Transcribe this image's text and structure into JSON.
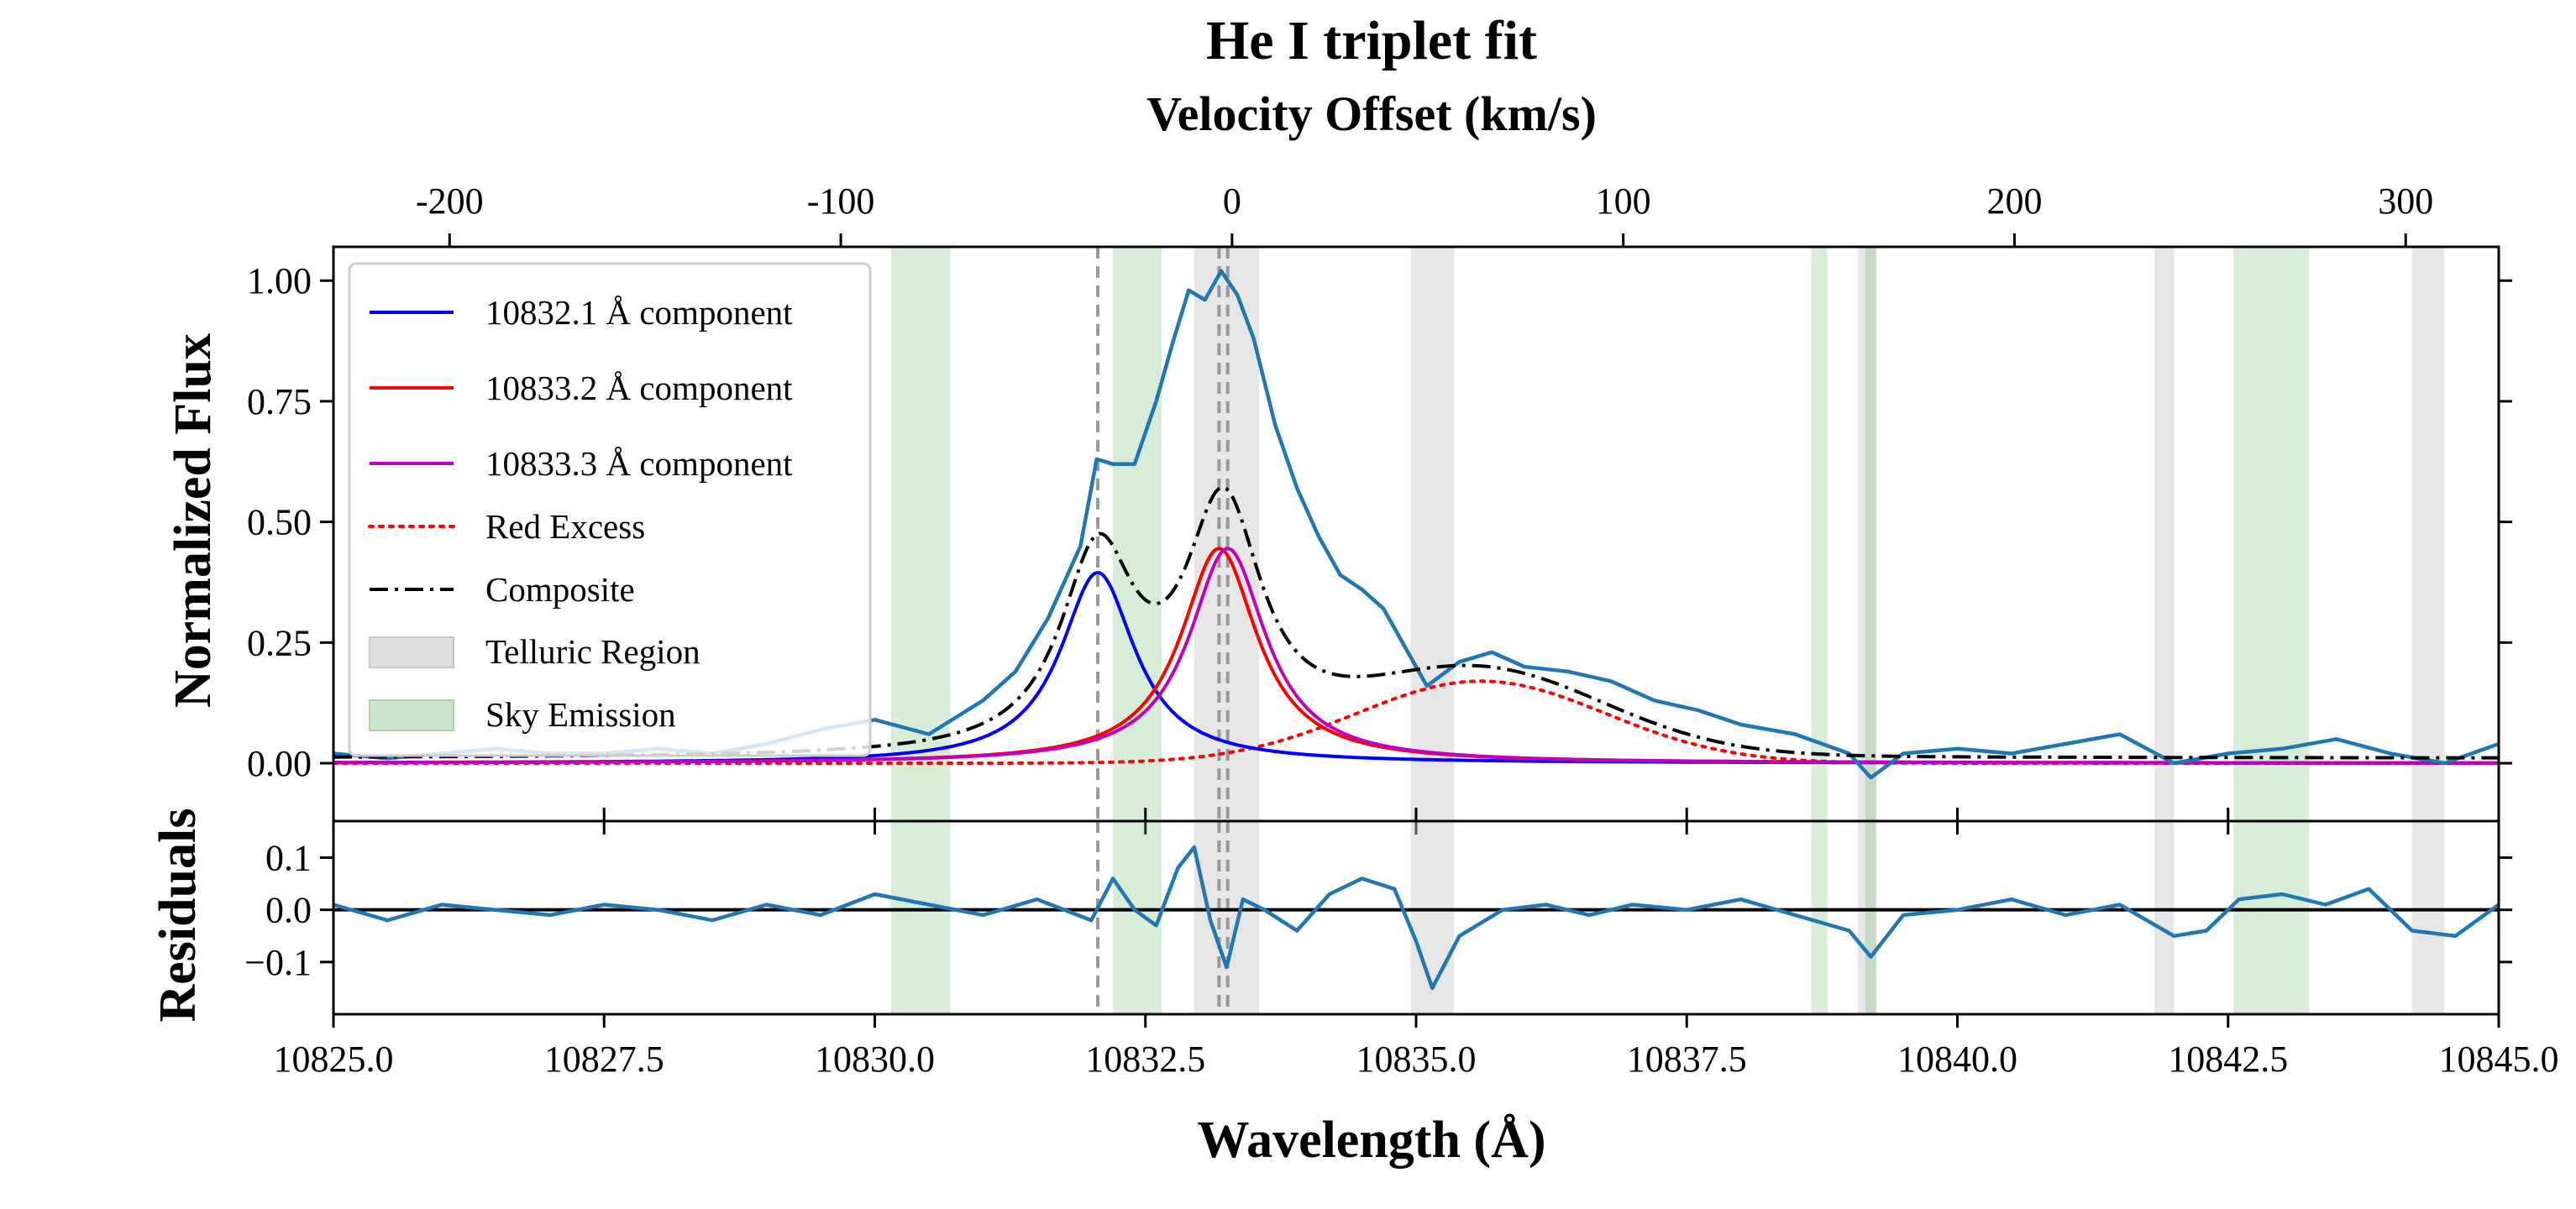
{
  "chart_data": {
    "type": "line",
    "title": "He I triplet fit",
    "top_axis_label": "Velocity Offset (km/s)",
    "top_ticks": [
      -200,
      -100,
      0,
      100,
      200,
      300
    ],
    "top_tick_labels": [
      "-200",
      "-100",
      "0",
      "100",
      "200",
      "300"
    ],
    "velocity_reference_A": 10833.3,
    "xlabel": "Wavelength (Å)",
    "xlim": [
      10825.0,
      10845.0
    ],
    "x_ticks": [
      10825.0,
      10827.5,
      10830.0,
      10832.5,
      10835.0,
      10837.5,
      10840.0,
      10842.5,
      10845.0
    ],
    "x_tick_labels": [
      "10825.0",
      "10827.5",
      "10830.0",
      "10832.5",
      "10835.0",
      "10837.5",
      "10840.0",
      "10842.5",
      "10845.0"
    ],
    "top_panel": {
      "ylabel": "Normalized Flux",
      "ylim": [
        -0.12,
        1.07
      ],
      "y_ticks": [
        0.0,
        0.25,
        0.5,
        0.75,
        1.0
      ],
      "y_tick_labels": [
        "0.00",
        "0.25",
        "0.50",
        "0.75",
        "1.00"
      ]
    },
    "bottom_panel": {
      "ylabel": "Residuals",
      "ylim": [
        -0.2,
        0.17
      ],
      "y_ticks": [
        -0.1,
        0.0,
        0.1
      ],
      "y_tick_labels": [
        "−0.1",
        "0.0",
        "0.1"
      ]
    },
    "legend": {
      "location": "upper-left",
      "entries": [
        {
          "label": "10832.1 Å component",
          "style": "solid",
          "color": "#0000ff"
        },
        {
          "label": "10833.2 Å component",
          "style": "solid",
          "color": "#ff0000"
        },
        {
          "label": "10833.3 Å component",
          "style": "solid",
          "color": "#bf00bf"
        },
        {
          "label": "Red Excess",
          "style": "dotted",
          "color": "#ff0000"
        },
        {
          "label": "Composite",
          "style": "dashdot",
          "color": "#000000"
        },
        {
          "label": "Telluric Region",
          "style": "patch",
          "color": "#c8c8c8"
        },
        {
          "label": "Sky Emission",
          "style": "patch",
          "color": "#a9d4a9"
        }
      ]
    },
    "components": [
      {
        "center": 10832.06,
        "amplitude": 0.395,
        "sigma": 0.42,
        "color": "#0000ff"
      },
      {
        "center": 10833.18,
        "amplitude": 0.445,
        "sigma": 0.43,
        "color": "#ff0000"
      },
      {
        "center": 10833.26,
        "amplitude": 0.445,
        "sigma": 0.43,
        "color": "#bf00bf"
      }
    ],
    "red_excess": {
      "center": 10835.6,
      "amplitude": 0.17,
      "sigma": 1.15,
      "color": "#ff0000"
    },
    "line_markers_A": [
      10832.06,
      10833.18,
      10833.26
    ],
    "telluric_regions_A": [
      [
        10832.95,
        10833.55
      ],
      [
        10834.95,
        10835.35
      ],
      [
        10839.08,
        10839.25
      ],
      [
        10841.82,
        10842.0
      ],
      [
        10844.2,
        10844.5
      ]
    ],
    "sky_emission_regions_A": [
      [
        10830.15,
        10830.7
      ],
      [
        10832.2,
        10832.65
      ],
      [
        10838.65,
        10838.8
      ],
      [
        10839.15,
        10839.25
      ],
      [
        10842.55,
        10843.25
      ]
    ],
    "observed": {
      "color": "#1f77b4",
      "x": [
        10825.0,
        10825.5,
        10826.0,
        10826.5,
        10827.0,
        10827.5,
        10828.0,
        10828.5,
        10829.0,
        10829.5,
        10830.0,
        10830.5,
        10831.0,
        10831.3,
        10831.6,
        10831.9,
        10832.05,
        10832.2,
        10832.4,
        10832.6,
        10832.75,
        10832.9,
        10833.05,
        10833.2,
        10833.35,
        10833.5,
        10833.7,
        10833.9,
        10834.1,
        10834.3,
        10834.5,
        10834.7,
        10834.9,
        10835.1,
        10835.4,
        10835.7,
        10836.0,
        10836.4,
        10836.8,
        10837.2,
        10837.6,
        10838.0,
        10838.5,
        10839.0,
        10839.2,
        10839.5,
        10840.0,
        10840.5,
        10841.0,
        10841.5,
        10842.0,
        10842.5,
        10843.0,
        10843.5,
        10844.0,
        10844.5,
        10845.0
      ],
      "y": [
        0.02,
        0.01,
        0.02,
        0.03,
        0.02,
        0.02,
        0.03,
        0.02,
        0.04,
        0.07,
        0.09,
        0.06,
        0.13,
        0.19,
        0.3,
        0.45,
        0.63,
        0.62,
        0.62,
        0.75,
        0.87,
        0.98,
        0.96,
        1.02,
        0.97,
        0.88,
        0.7,
        0.57,
        0.47,
        0.39,
        0.36,
        0.32,
        0.24,
        0.16,
        0.21,
        0.23,
        0.2,
        0.19,
        0.17,
        0.13,
        0.11,
        0.08,
        0.06,
        0.02,
        -0.03,
        0.02,
        0.03,
        0.02,
        0.04,
        0.06,
        0.0,
        0.02,
        0.03,
        0.05,
        0.02,
        0.0,
        0.04
      ]
    },
    "residuals": {
      "color": "#1f77b4",
      "x": [
        10825.0,
        10825.5,
        10826.0,
        10826.5,
        10827.0,
        10827.5,
        10828.0,
        10828.5,
        10829.0,
        10829.5,
        10830.0,
        10830.5,
        10831.0,
        10831.5,
        10832.0,
        10832.2,
        10832.4,
        10832.6,
        10832.8,
        10832.95,
        10833.1,
        10833.25,
        10833.4,
        10833.6,
        10833.9,
        10834.2,
        10834.5,
        10834.8,
        10835.0,
        10835.15,
        10835.4,
        10835.8,
        10836.2,
        10836.6,
        10837.0,
        10837.5,
        10838.0,
        10838.5,
        10839.0,
        10839.2,
        10839.5,
        10840.0,
        10840.5,
        10841.0,
        10841.5,
        10842.0,
        10842.3,
        10842.6,
        10843.0,
        10843.4,
        10843.8,
        10844.2,
        10844.6,
        10845.0
      ],
      "y": [
        0.01,
        -0.02,
        0.01,
        0.0,
        -0.01,
        0.01,
        0.0,
        -0.02,
        0.01,
        -0.01,
        0.03,
        0.01,
        -0.01,
        0.02,
        -0.02,
        0.06,
        0.0,
        -0.03,
        0.08,
        0.12,
        -0.02,
        -0.11,
        0.02,
        0.0,
        -0.04,
        0.03,
        0.06,
        0.04,
        -0.06,
        -0.15,
        -0.05,
        0.0,
        0.01,
        -0.01,
        0.01,
        0.0,
        0.02,
        -0.01,
        -0.04,
        -0.09,
        -0.01,
        0.0,
        0.02,
        -0.01,
        0.01,
        -0.05,
        -0.04,
        0.02,
        0.03,
        0.01,
        0.04,
        -0.04,
        -0.05,
        0.01
      ]
    }
  }
}
